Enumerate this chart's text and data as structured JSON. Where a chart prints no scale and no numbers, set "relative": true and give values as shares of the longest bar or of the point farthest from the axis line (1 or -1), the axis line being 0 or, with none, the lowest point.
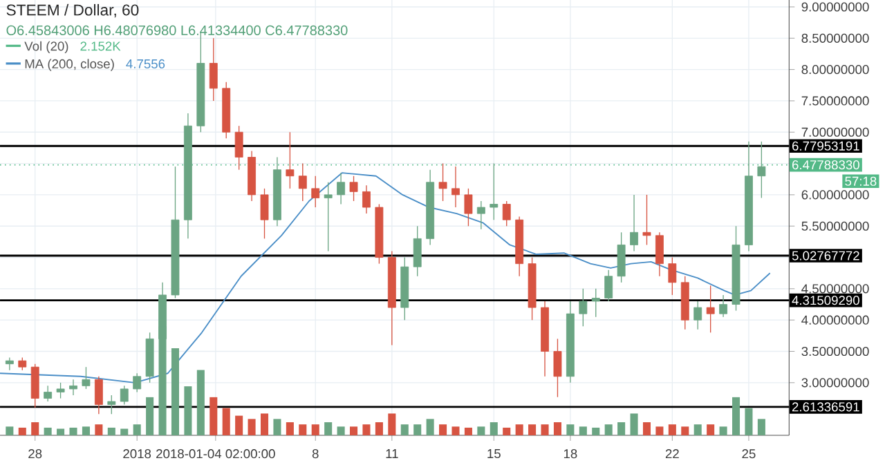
{
  "chart_data": [
    {
      "type": "candlestick",
      "title": "STEEM / Dollar, 60",
      "subtitle": "O6.45843006 H6.48076980 L6.41334400 C6.47788330",
      "annotations": [
        "4.7556",
        "57:18"
      ],
      "x": [
        "2017-12-27T00:00",
        "2017-12-27T12:00",
        "2017-12-28T00:00",
        "2017-12-28T12:00",
        "2017-12-29T00:00",
        "2017-12-29T12:00",
        "2017-12-30T00:00",
        "2017-12-30T12:00",
        "2017-12-31T00:00",
        "2017-12-31T12:00",
        "2018-01-01T00:00",
        "2018-01-01T12:00",
        "2018-01-02T00:00",
        "2018-01-02T12:00",
        "2018-01-03T00:00",
        "2018-01-03T12:00",
        "2018-01-04T00:00",
        "2018-01-04T12:00",
        "2018-01-05T00:00",
        "2018-01-05T12:00",
        "2018-01-06T00:00",
        "2018-01-06T12:00",
        "2018-01-07T00:00",
        "2018-01-07T12:00",
        "2018-01-08T00:00",
        "2018-01-08T12:00",
        "2018-01-09T00:00",
        "2018-01-09T12:00",
        "2018-01-10T00:00",
        "2018-01-10T12:00",
        "2018-01-11T00:00",
        "2018-01-11T12:00",
        "2018-01-12T00:00",
        "2018-01-12T12:00",
        "2018-01-13T00:00",
        "2018-01-13T12:00",
        "2018-01-14T00:00",
        "2018-01-14T12:00",
        "2018-01-15T00:00",
        "2018-01-15T12:00",
        "2018-01-16T00:00",
        "2018-01-16T12:00",
        "2018-01-17T00:00",
        "2018-01-17T12:00",
        "2018-01-18T00:00",
        "2018-01-18T12:00",
        "2018-01-19T00:00",
        "2018-01-19T12:00",
        "2018-01-20T00:00",
        "2018-01-20T12:00",
        "2018-01-21T00:00",
        "2018-01-21T12:00",
        "2018-01-22T00:00",
        "2018-01-22T12:00",
        "2018-01-23T00:00",
        "2018-01-23T12:00",
        "2018-01-24T00:00",
        "2018-01-24T12:00",
        "2018-01-25T00:00",
        "2018-01-25T12:00"
      ],
      "ohlc": [
        [
          3.3,
          3.4,
          3.2,
          3.35
        ],
        [
          3.35,
          3.4,
          3.2,
          3.25
        ],
        [
          3.25,
          3.3,
          2.6,
          2.75
        ],
        [
          2.75,
          2.95,
          2.7,
          2.85
        ],
        [
          2.85,
          3.0,
          2.75,
          2.9
        ],
        [
          2.9,
          3.05,
          2.8,
          2.95
        ],
        [
          2.95,
          3.25,
          2.9,
          3.05
        ],
        [
          3.05,
          3.1,
          2.5,
          2.65
        ],
        [
          2.65,
          2.8,
          2.5,
          2.7
        ],
        [
          2.7,
          2.95,
          2.65,
          2.9
        ],
        [
          2.9,
          3.15,
          2.85,
          3.1
        ],
        [
          3.1,
          3.8,
          3.0,
          3.7
        ],
        [
          3.7,
          4.6,
          3.6,
          4.4
        ],
        [
          4.4,
          6.45,
          4.35,
          5.6
        ],
        [
          5.6,
          7.3,
          5.3,
          7.1
        ],
        [
          7.1,
          8.6,
          7.0,
          8.1
        ],
        [
          8.1,
          8.5,
          7.5,
          7.7
        ],
        [
          7.7,
          7.8,
          6.9,
          7.0
        ],
        [
          7.0,
          7.1,
          6.4,
          6.6
        ],
        [
          6.6,
          6.7,
          5.9,
          6.0
        ],
        [
          6.0,
          6.1,
          5.3,
          5.6
        ],
        [
          5.6,
          6.6,
          5.5,
          6.4
        ],
        [
          6.4,
          7.0,
          6.1,
          6.3
        ],
        [
          6.3,
          6.5,
          5.9,
          6.1
        ],
        [
          6.1,
          6.3,
          5.8,
          5.95
        ],
        [
          5.95,
          6.2,
          5.1,
          6.0
        ],
        [
          6.0,
          6.35,
          5.85,
          6.2
        ],
        [
          6.2,
          6.3,
          5.9,
          6.05
        ],
        [
          6.05,
          6.15,
          5.7,
          5.8
        ],
        [
          5.8,
          5.85,
          4.9,
          5.0
        ],
        [
          5.0,
          5.1,
          3.6,
          4.2
        ],
        [
          4.2,
          5.0,
          4.0,
          4.85
        ],
        [
          4.85,
          5.5,
          4.7,
          5.3
        ],
        [
          5.3,
          6.4,
          5.2,
          6.2
        ],
        [
          6.2,
          6.5,
          5.9,
          6.1
        ],
        [
          6.1,
          6.45,
          5.8,
          6.0
        ],
        [
          6.0,
          6.1,
          5.5,
          5.7
        ],
        [
          5.7,
          5.9,
          5.45,
          5.8
        ],
        [
          5.8,
          6.5,
          5.6,
          5.85
        ],
        [
          5.85,
          5.9,
          5.5,
          5.6
        ],
        [
          5.6,
          5.65,
          4.7,
          4.9
        ],
        [
          4.9,
          5.0,
          4.0,
          4.2
        ],
        [
          4.2,
          4.3,
          3.1,
          3.5
        ],
        [
          3.5,
          3.7,
          2.77,
          3.1
        ],
        [
          3.1,
          4.3,
          3.0,
          4.1
        ],
        [
          4.1,
          4.5,
          3.9,
          4.3
        ],
        [
          4.3,
          4.5,
          4.05,
          4.35
        ],
        [
          4.35,
          4.8,
          4.3,
          4.7
        ],
        [
          4.7,
          5.4,
          4.6,
          5.2
        ],
        [
          5.2,
          6.0,
          5.1,
          5.4
        ],
        [
          5.4,
          6.0,
          5.2,
          5.35
        ],
        [
          5.35,
          5.4,
          4.7,
          4.9
        ],
        [
          4.9,
          5.0,
          4.4,
          4.6
        ],
        [
          4.6,
          4.7,
          3.85,
          4.0
        ],
        [
          4.0,
          4.3,
          3.85,
          4.2
        ],
        [
          4.2,
          4.55,
          3.8,
          4.1
        ],
        [
          4.1,
          4.4,
          4.05,
          4.25
        ],
        [
          4.25,
          5.5,
          4.15,
          5.2
        ],
        [
          5.2,
          6.85,
          5.1,
          6.3
        ],
        [
          6.3,
          6.85,
          5.95,
          6.45
        ]
      ],
      "colors": [
        "#6ba583",
        "#d75442",
        "#d75442",
        "#6ba583",
        "#6ba583",
        "#6ba583",
        "#6ba583",
        "#d75442",
        "#6ba583",
        "#6ba583",
        "#6ba583",
        "#6ba583",
        "#6ba583",
        "#6ba583",
        "#6ba583",
        "#6ba583",
        "#d75442",
        "#d75442",
        "#d75442",
        "#d75442",
        "#d75442",
        "#6ba583",
        "#d75442",
        "#d75442",
        "#d75442",
        "#6ba583",
        "#6ba583",
        "#d75442",
        "#d75442",
        "#d75442",
        "#d75442",
        "#6ba583",
        "#6ba583",
        "#6ba583",
        "#d75442",
        "#d75442",
        "#d75442",
        "#6ba583",
        "#6ba583",
        "#d75442",
        "#d75442",
        "#d75442",
        "#d75442",
        "#d75442",
        "#6ba583",
        "#6ba583",
        "#6ba583",
        "#6ba583",
        "#6ba583",
        "#6ba583",
        "#d75442",
        "#d75442",
        "#d75442",
        "#d75442",
        "#6ba583",
        "#d75442",
        "#6ba583",
        "#6ba583",
        "#6ba583",
        "#6ba583"
      ],
      "series": [
        {
          "type": "line",
          "name": "MA (200, close)",
          "color": "#4a8ec7",
          "x": [
            "2017-12-26T15:00",
            "2017-12-29T19:00",
            "2017-12-31T22:00",
            "2018-01-02T05:00",
            "2018-01-03T13:00",
            "2018-01-05T02:00",
            "2018-01-06T16:00",
            "2018-01-07T18:00",
            "2018-01-09T01:00",
            "2018-01-10T09:00",
            "2018-01-11T10:00",
            "2018-01-12T11:00",
            "2018-01-13T13:00",
            "2018-01-14T14:00",
            "2018-01-15T15:00",
            "2018-01-16T16:00",
            "2018-01-17T18:00",
            "2018-01-18T19:00",
            "2018-01-19T14:00",
            "2018-01-20T09:00",
            "2018-01-21T04:00",
            "2018-01-21T23:00",
            "2018-01-23T00:00",
            "2018-01-24T01:00",
            "2018-01-24T11:00",
            "2018-01-25T02:00",
            "2018-01-25T20:00"
          ],
          "values": [
            3.15,
            3.1,
            3.0,
            3.15,
            3.8,
            4.7,
            5.35,
            5.9,
            6.35,
            6.3,
            6.0,
            5.8,
            5.7,
            5.55,
            5.2,
            5.05,
            5.07,
            4.9,
            4.83,
            4.9,
            4.93,
            4.8,
            4.67,
            4.47,
            4.4,
            4.47,
            4.75
          ]
        }
      ],
      "xlim": [
        "2017-12-26T15:00",
        "2018-01-26T14:00"
      ],
      "xticks": [
        {
          "value": "2017-12-28T00:00",
          "label": "28"
        },
        {
          "value": "2018-01-01T00:00",
          "label": "2018"
        },
        {
          "value": "2018-01-04T02:00",
          "label": "2018-01-04 02:00:00"
        },
        {
          "value": "2018-01-08T00:00",
          "label": "8"
        },
        {
          "value": "2018-01-11T00:00",
          "label": "11"
        },
        {
          "value": "2018-01-15T00:00",
          "label": "15"
        },
        {
          "value": "2018-01-18T00:00",
          "label": "18"
        },
        {
          "value": "2018-01-22T00:00",
          "label": "22"
        },
        {
          "value": "2018-01-25T00:00",
          "label": "25"
        }
      ],
      "ylim": [
        2.16,
        9.11
      ],
      "yticks": [
        {
          "value": 3,
          "label": "3.00000000"
        },
        {
          "value": 3.5,
          "label": "3.50000000"
        },
        {
          "value": 4,
          "label": "4.00000000"
        },
        {
          "value": 4.5,
          "label": "4.50000000"
        },
        {
          "value": 5,
          "label": null
        },
        {
          "value": 5.5,
          "label": "5.50000000"
        },
        {
          "value": 6,
          "label": "6.00000000"
        },
        {
          "value": 6.5,
          "label": null
        },
        {
          "value": 7,
          "label": "7.00000000"
        },
        {
          "value": 7.5,
          "label": "7.50000000"
        },
        {
          "value": 8,
          "label": "8.00000000"
        },
        {
          "value": 8.5,
          "label": "8.50000000"
        },
        {
          "value": 9,
          "label": "9.00000000"
        }
      ],
      "ref_lines": [
        {
          "axis": "y",
          "value": 6.77953191,
          "label": "6.77953191",
          "color": "#000000"
        },
        {
          "axis": "y",
          "value": 6.4778833,
          "label": "6.47788330",
          "color": "#53b987",
          "line_style": "dotted"
        },
        {
          "axis": "y",
          "value": 5.02767772,
          "label": "5.02767772",
          "color": "#000000"
        },
        {
          "axis": "y",
          "value": 4.3150929,
          "label": "4.31509290",
          "color": "#000000"
        },
        {
          "axis": "y",
          "value": 2.61336591,
          "label": "2.61336591",
          "color": "#000000"
        }
      ],
      "grid": true,
      "legend": "top left"
    },
    {
      "type": "bar",
      "relative": true,
      "legend": "top left",
      "annotations": [
        "2.152K"
      ],
      "xlim": [
        "2017-12-26T15:00",
        "2018-01-26T14:00"
      ],
      "series": [
        {
          "name": "Vol (20)",
          "color": "#53b987",
          "x": [
            "2017-12-27T00:00",
            "2017-12-27T12:00",
            "2017-12-28T00:00",
            "2017-12-28T12:00",
            "2017-12-29T00:00",
            "2017-12-29T12:00",
            "2017-12-30T00:00",
            "2017-12-30T12:00",
            "2017-12-31T00:00",
            "2017-12-31T12:00",
            "2018-01-01T00:00",
            "2018-01-01T12:00",
            "2018-01-02T00:00",
            "2018-01-02T12:00",
            "2018-01-03T00:00",
            "2018-01-03T12:00",
            "2018-01-04T00:00",
            "2018-01-04T12:00",
            "2018-01-05T00:00",
            "2018-01-05T12:00",
            "2018-01-06T00:00",
            "2018-01-06T12:00",
            "2018-01-07T00:00",
            "2018-01-07T12:00",
            "2018-01-08T00:00",
            "2018-01-08T12:00",
            "2018-01-09T00:00",
            "2018-01-09T12:00",
            "2018-01-10T00:00",
            "2018-01-10T12:00",
            "2018-01-11T00:00",
            "2018-01-11T12:00",
            "2018-01-12T00:00",
            "2018-01-12T12:00",
            "2018-01-13T00:00",
            "2018-01-13T12:00",
            "2018-01-14T00:00",
            "2018-01-14T12:00",
            "2018-01-15T00:00",
            "2018-01-15T12:00",
            "2018-01-16T00:00",
            "2018-01-16T12:00",
            "2018-01-17T00:00",
            "2018-01-17T12:00",
            "2018-01-18T00:00",
            "2018-01-18T12:00",
            "2018-01-19T00:00",
            "2018-01-19T12:00",
            "2018-01-20T00:00",
            "2018-01-20T12:00",
            "2018-01-21T00:00",
            "2018-01-21T12:00",
            "2018-01-22T00:00",
            "2018-01-22T12:00",
            "2018-01-23T00:00",
            "2018-01-23T12:00",
            "2018-01-24T00:00",
            "2018-01-24T12:00",
            "2018-01-25T00:00",
            "2018-01-25T12:00"
          ],
          "values": [
            0.08,
            0.07,
            0.12,
            0.07,
            0.06,
            0.07,
            0.08,
            0.1,
            0.07,
            0.06,
            0.1,
            0.35,
            1.0,
            0.8,
            0.45,
            0.6,
            0.35,
            0.25,
            0.18,
            0.15,
            0.2,
            0.15,
            0.12,
            0.1,
            0.1,
            0.12,
            0.08,
            0.08,
            0.1,
            0.12,
            0.2,
            0.1,
            0.1,
            0.15,
            0.1,
            0.08,
            0.07,
            0.08,
            0.12,
            0.07,
            0.1,
            0.1,
            0.1,
            0.12,
            0.1,
            0.08,
            0.07,
            0.1,
            0.12,
            0.2,
            0.12,
            0.08,
            0.1,
            0.08,
            0.1,
            0.1,
            0.08,
            0.35,
            0.25,
            0.15
          ],
          "colors": [
            "#6ba583",
            "#d75442",
            "#d75442",
            "#6ba583",
            "#6ba583",
            "#6ba583",
            "#6ba583",
            "#d75442",
            "#6ba583",
            "#6ba583",
            "#6ba583",
            "#6ba583",
            "#6ba583",
            "#6ba583",
            "#6ba583",
            "#6ba583",
            "#d75442",
            "#d75442",
            "#d75442",
            "#d75442",
            "#d75442",
            "#6ba583",
            "#d75442",
            "#d75442",
            "#d75442",
            "#6ba583",
            "#6ba583",
            "#d75442",
            "#d75442",
            "#d75442",
            "#d75442",
            "#6ba583",
            "#6ba583",
            "#6ba583",
            "#d75442",
            "#d75442",
            "#d75442",
            "#6ba583",
            "#6ba583",
            "#d75442",
            "#d75442",
            "#d75442",
            "#d75442",
            "#d75442",
            "#6ba583",
            "#6ba583",
            "#6ba583",
            "#6ba583",
            "#6ba583",
            "#6ba583",
            "#d75442",
            "#d75442",
            "#d75442",
            "#d75442",
            "#6ba583",
            "#d75442",
            "#6ba583",
            "#6ba583",
            "#6ba583",
            "#6ba583"
          ]
        }
      ]
    }
  ]
}
